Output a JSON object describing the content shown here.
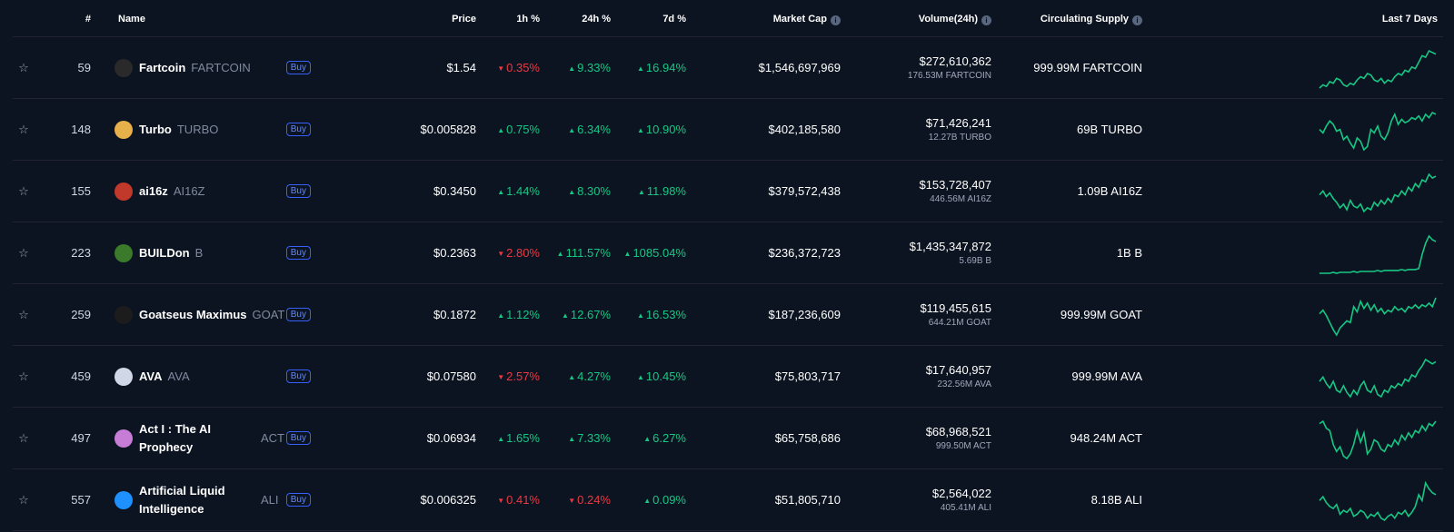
{
  "header": {
    "rank": "#",
    "name": "Name",
    "price": "Price",
    "h1": "1h %",
    "h24": "24h %",
    "d7": "7d %",
    "market_cap": "Market Cap",
    "volume": "Volume(24h)",
    "supply": "Circulating Supply",
    "last7": "Last 7 Days",
    "info_icon": "i"
  },
  "colors": {
    "up": "#16c784",
    "down": "#ea3943",
    "spark": "#16c784",
    "buy": "#3861fb"
  },
  "rows": [
    {
      "star": "☆",
      "rank": "59",
      "name": "Fartcoin",
      "symbol": "FARTCOIN",
      "buy": "Buy",
      "price": "$1.54",
      "h1": "0.35%",
      "h1_dir": "down",
      "h24": "9.33%",
      "h24_dir": "up",
      "d7": "16.94%",
      "d7_dir": "up",
      "market_cap": "$1,546,697,969",
      "volume": "$272,610,362",
      "volume_sub": "176.53M FARTCOIN",
      "supply": "999.99M FARTCOIN",
      "logo_color": "#2a2a2a",
      "spark": [
        40,
        44,
        42,
        48,
        46,
        52,
        50,
        44,
        42,
        46,
        44,
        50,
        54,
        52,
        58,
        56,
        50,
        48,
        52,
        46,
        50,
        48,
        54,
        58,
        56,
        62,
        60,
        66,
        64,
        72,
        80,
        78,
        86,
        84,
        82
      ]
    },
    {
      "star": "☆",
      "rank": "148",
      "name": "Turbo",
      "symbol": "TURBO",
      "buy": "Buy",
      "price": "$0.005828",
      "h1": "0.75%",
      "h1_dir": "up",
      "h24": "6.34%",
      "h24_dir": "up",
      "d7": "10.90%",
      "d7_dir": "up",
      "market_cap": "$402,185,580",
      "volume": "$71,426,241",
      "volume_sub": "12.27B TURBO",
      "supply": "69B TURBO",
      "logo_color": "#e8b04a",
      "spark": [
        60,
        56,
        64,
        70,
        66,
        58,
        60,
        48,
        52,
        44,
        38,
        50,
        46,
        36,
        40,
        60,
        56,
        64,
        52,
        48,
        56,
        70,
        78,
        66,
        72,
        68,
        70,
        74,
        72,
        76,
        70,
        78,
        74,
        80,
        78
      ]
    },
    {
      "star": "☆",
      "rank": "155",
      "name": "ai16z",
      "symbol": "AI16Z",
      "buy": "Buy",
      "price": "$0.3450",
      "h1": "1.44%",
      "h1_dir": "up",
      "h24": "8.30%",
      "h24_dir": "up",
      "d7": "11.98%",
      "d7_dir": "up",
      "market_cap": "$379,572,438",
      "volume": "$153,728,407",
      "volume_sub": "446.56M AI16Z",
      "supply": "1.09B AI16Z",
      "logo_color": "#c0392b",
      "spark": [
        62,
        66,
        60,
        64,
        58,
        54,
        48,
        52,
        46,
        56,
        50,
        48,
        52,
        44,
        48,
        46,
        54,
        50,
        56,
        52,
        58,
        54,
        62,
        60,
        66,
        62,
        70,
        66,
        74,
        70,
        78,
        76,
        84,
        80,
        82
      ]
    },
    {
      "star": "☆",
      "rank": "223",
      "name": "BUILDon",
      "symbol": "B",
      "buy": "Buy",
      "price": "$0.2363",
      "h1": "2.80%",
      "h1_dir": "down",
      "h24": "111.57%",
      "h24_dir": "up",
      "d7": "1085.04%",
      "d7_dir": "up",
      "market_cap": "$236,372,723",
      "volume": "$1,435,347,872",
      "volume_sub": "5.69B B",
      "supply": "1B B",
      "logo_color": "#3a7a2a",
      "spark": [
        40,
        40,
        40,
        40,
        41,
        40,
        41,
        41,
        41,
        41,
        42,
        41,
        42,
        42,
        42,
        42,
        42,
        43,
        42,
        43,
        43,
        43,
        43,
        43,
        44,
        43,
        44,
        44,
        44,
        45,
        60,
        72,
        80,
        76,
        74
      ]
    },
    {
      "star": "☆",
      "rank": "259",
      "name": "Goatseus Maximus",
      "symbol": "GOAT",
      "buy": "Buy",
      "price": "$0.1872",
      "h1": "1.12%",
      "h1_dir": "up",
      "h24": "12.67%",
      "h24_dir": "up",
      "d7": "16.53%",
      "d7_dir": "up",
      "market_cap": "$187,236,609",
      "volume": "$119,455,615",
      "volume_sub": "644.21M GOAT",
      "supply": "999.99M GOAT",
      "logo_color": "#1c1c1c",
      "spark": [
        68,
        72,
        66,
        58,
        50,
        44,
        52,
        56,
        60,
        58,
        76,
        70,
        82,
        74,
        80,
        72,
        78,
        70,
        74,
        68,
        72,
        70,
        76,
        72,
        74,
        70,
        76,
        74,
        78,
        74,
        78,
        76,
        80,
        76,
        86
      ]
    },
    {
      "star": "☆",
      "rank": "459",
      "name": "AVA",
      "symbol": "AVA",
      "buy": "Buy",
      "price": "$0.07580",
      "h1": "2.57%",
      "h1_dir": "down",
      "h24": "4.27%",
      "h24_dir": "up",
      "d7": "10.45%",
      "d7_dir": "up",
      "market_cap": "$75,803,717",
      "volume": "$17,640,957",
      "volume_sub": "232.56M AVA",
      "supply": "999.99M AVA",
      "logo_color": "#d0d8e8",
      "spark": [
        60,
        64,
        58,
        54,
        60,
        52,
        50,
        56,
        50,
        46,
        52,
        48,
        56,
        60,
        52,
        50,
        56,
        48,
        46,
        52,
        50,
        56,
        54,
        58,
        56,
        62,
        60,
        66,
        64,
        70,
        74,
        80,
        78,
        76,
        78
      ]
    },
    {
      "star": "☆",
      "rank": "497",
      "name": "Act I : The AI Prophecy",
      "symbol": "ACT",
      "buy": "Buy",
      "price": "$0.06934",
      "h1": "1.65%",
      "h1_dir": "up",
      "h24": "7.33%",
      "h24_dir": "up",
      "d7": "6.27%",
      "d7_dir": "up",
      "market_cap": "$65,758,686",
      "volume": "$68,968,521",
      "volume_sub": "999.50M ACT",
      "supply": "948.24M ACT",
      "logo_color": "#c77dd6",
      "spark": [
        78,
        80,
        74,
        72,
        60,
        54,
        58,
        50,
        48,
        52,
        60,
        72,
        62,
        70,
        52,
        56,
        64,
        62,
        56,
        54,
        60,
        58,
        64,
        60,
        68,
        64,
        70,
        66,
        72,
        70,
        76,
        72,
        78,
        76,
        80
      ]
    },
    {
      "star": "☆",
      "rank": "557",
      "name": "Artificial Liquid Intelligence",
      "symbol": "ALI",
      "buy": "Buy",
      "price": "$0.006325",
      "h1": "0.41%",
      "h1_dir": "down",
      "h24": "0.24%",
      "h24_dir": "down",
      "d7": "0.09%",
      "d7_dir": "up",
      "market_cap": "$51,805,710",
      "volume": "$2,564,022",
      "volume_sub": "405.41M ALI",
      "supply": "8.18B ALI",
      "logo_color": "#1e90ff",
      "spark": [
        66,
        70,
        64,
        60,
        58,
        62,
        52,
        56,
        54,
        58,
        50,
        52,
        56,
        54,
        48,
        52,
        50,
        54,
        48,
        46,
        50,
        52,
        48,
        54,
        52,
        56,
        50,
        54,
        60,
        72,
        66,
        84,
        78,
        74,
        72
      ]
    }
  ]
}
